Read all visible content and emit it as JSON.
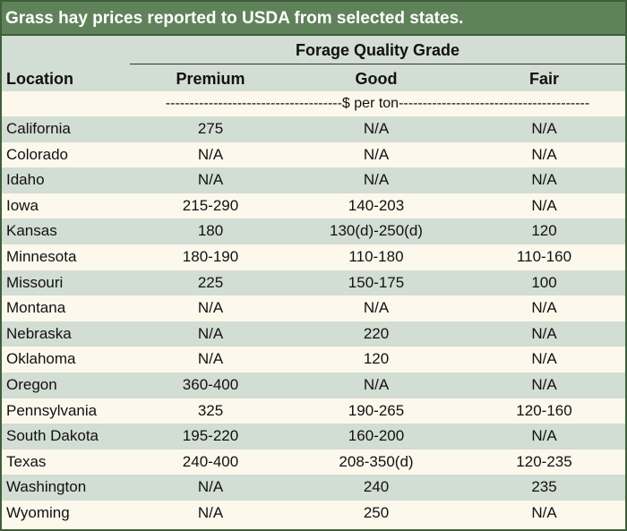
{
  "title": "Grass hay prices reported to USDA from selected states.",
  "header": {
    "group": "Forage Quality Grade",
    "location": "Location",
    "premium": "Premium",
    "good": "Good",
    "fair": "Fair"
  },
  "units": "-------------------------------------$ per ton----------------------------------------",
  "rows": [
    {
      "location": "California",
      "premium": "275",
      "good": "N/A",
      "fair": "N/A"
    },
    {
      "location": "Colorado",
      "premium": "N/A",
      "good": "N/A",
      "fair": "N/A"
    },
    {
      "location": "Idaho",
      "premium": "N/A",
      "good": "N/A",
      "fair": "N/A"
    },
    {
      "location": "Iowa",
      "premium": "215-290",
      "good": "140-203",
      "fair": "N/A"
    },
    {
      "location": "Kansas",
      "premium": "180",
      "good": "130(d)-250(d)",
      "fair": "120"
    },
    {
      "location": "Minnesota",
      "premium": "180-190",
      "good": "110-180",
      "fair": "110-160"
    },
    {
      "location": "Missouri",
      "premium": "225",
      "good": "150-175",
      "fair": "100"
    },
    {
      "location": "Montana",
      "premium": "N/A",
      "good": "N/A",
      "fair": "N/A"
    },
    {
      "location": "Nebraska",
      "premium": "N/A",
      "good": "220",
      "fair": "N/A"
    },
    {
      "location": "Oklahoma",
      "premium": "N/A",
      "good": "120",
      "fair": "N/A"
    },
    {
      "location": "Oregon",
      "premium": "360-400",
      "good": "N/A",
      "fair": "N/A"
    },
    {
      "location": "Pennsylvania",
      "premium": "325",
      "good": "190-265",
      "fair": "120-160"
    },
    {
      "location": "South Dakota",
      "premium": "195-220",
      "good": "160-200",
      "fair": "N/A"
    },
    {
      "location": "Texas",
      "premium": "240-400",
      "good": "208-350(d)",
      "fair": "120-235"
    },
    {
      "location": "Washington",
      "premium": "N/A",
      "good": "240",
      "fair": "235"
    },
    {
      "location": "Wyoming",
      "premium": "N/A",
      "good": "250",
      "fair": "N/A"
    }
  ]
}
